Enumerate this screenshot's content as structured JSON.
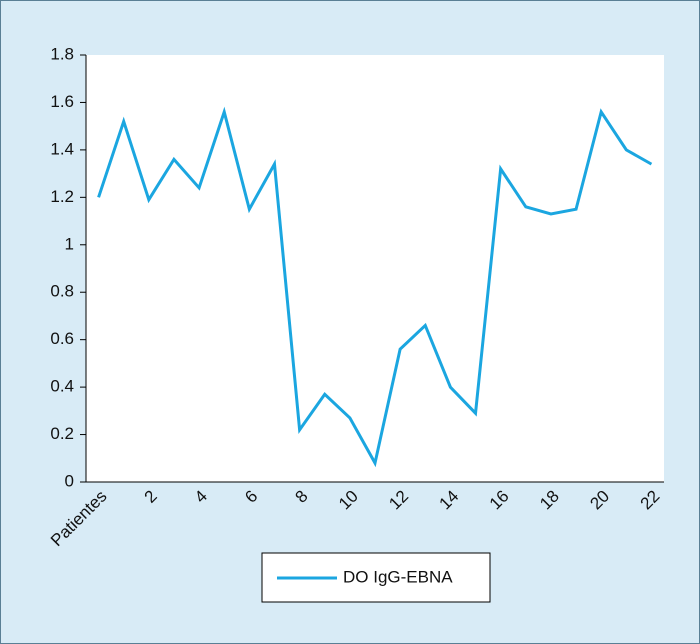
{
  "chart_data": {
    "type": "line",
    "categories": [
      "Patientes",
      null,
      "2",
      null,
      "4",
      null,
      "6",
      null,
      "8",
      null,
      "10",
      null,
      "12",
      null,
      "14",
      null,
      "16",
      null,
      "18",
      null,
      "20",
      null,
      "22"
    ],
    "series": [
      {
        "name": "DO IgG-EBNA",
        "color": "#1ba6e0",
        "values": [
          1.2,
          1.52,
          1.19,
          1.36,
          1.24,
          1.56,
          1.15,
          1.34,
          0.22,
          0.37,
          0.27,
          0.08,
          0.56,
          0.66,
          0.4,
          0.29,
          1.32,
          1.16,
          1.13,
          1.15,
          1.56,
          1.4,
          1.34
        ]
      }
    ],
    "ylim": [
      0,
      1.8
    ],
    "yticks": [
      0,
      0.2,
      0.4,
      0.6,
      0.8,
      1,
      1.2,
      1.4,
      1.6,
      1.8
    ],
    "legend": "bottom"
  }
}
